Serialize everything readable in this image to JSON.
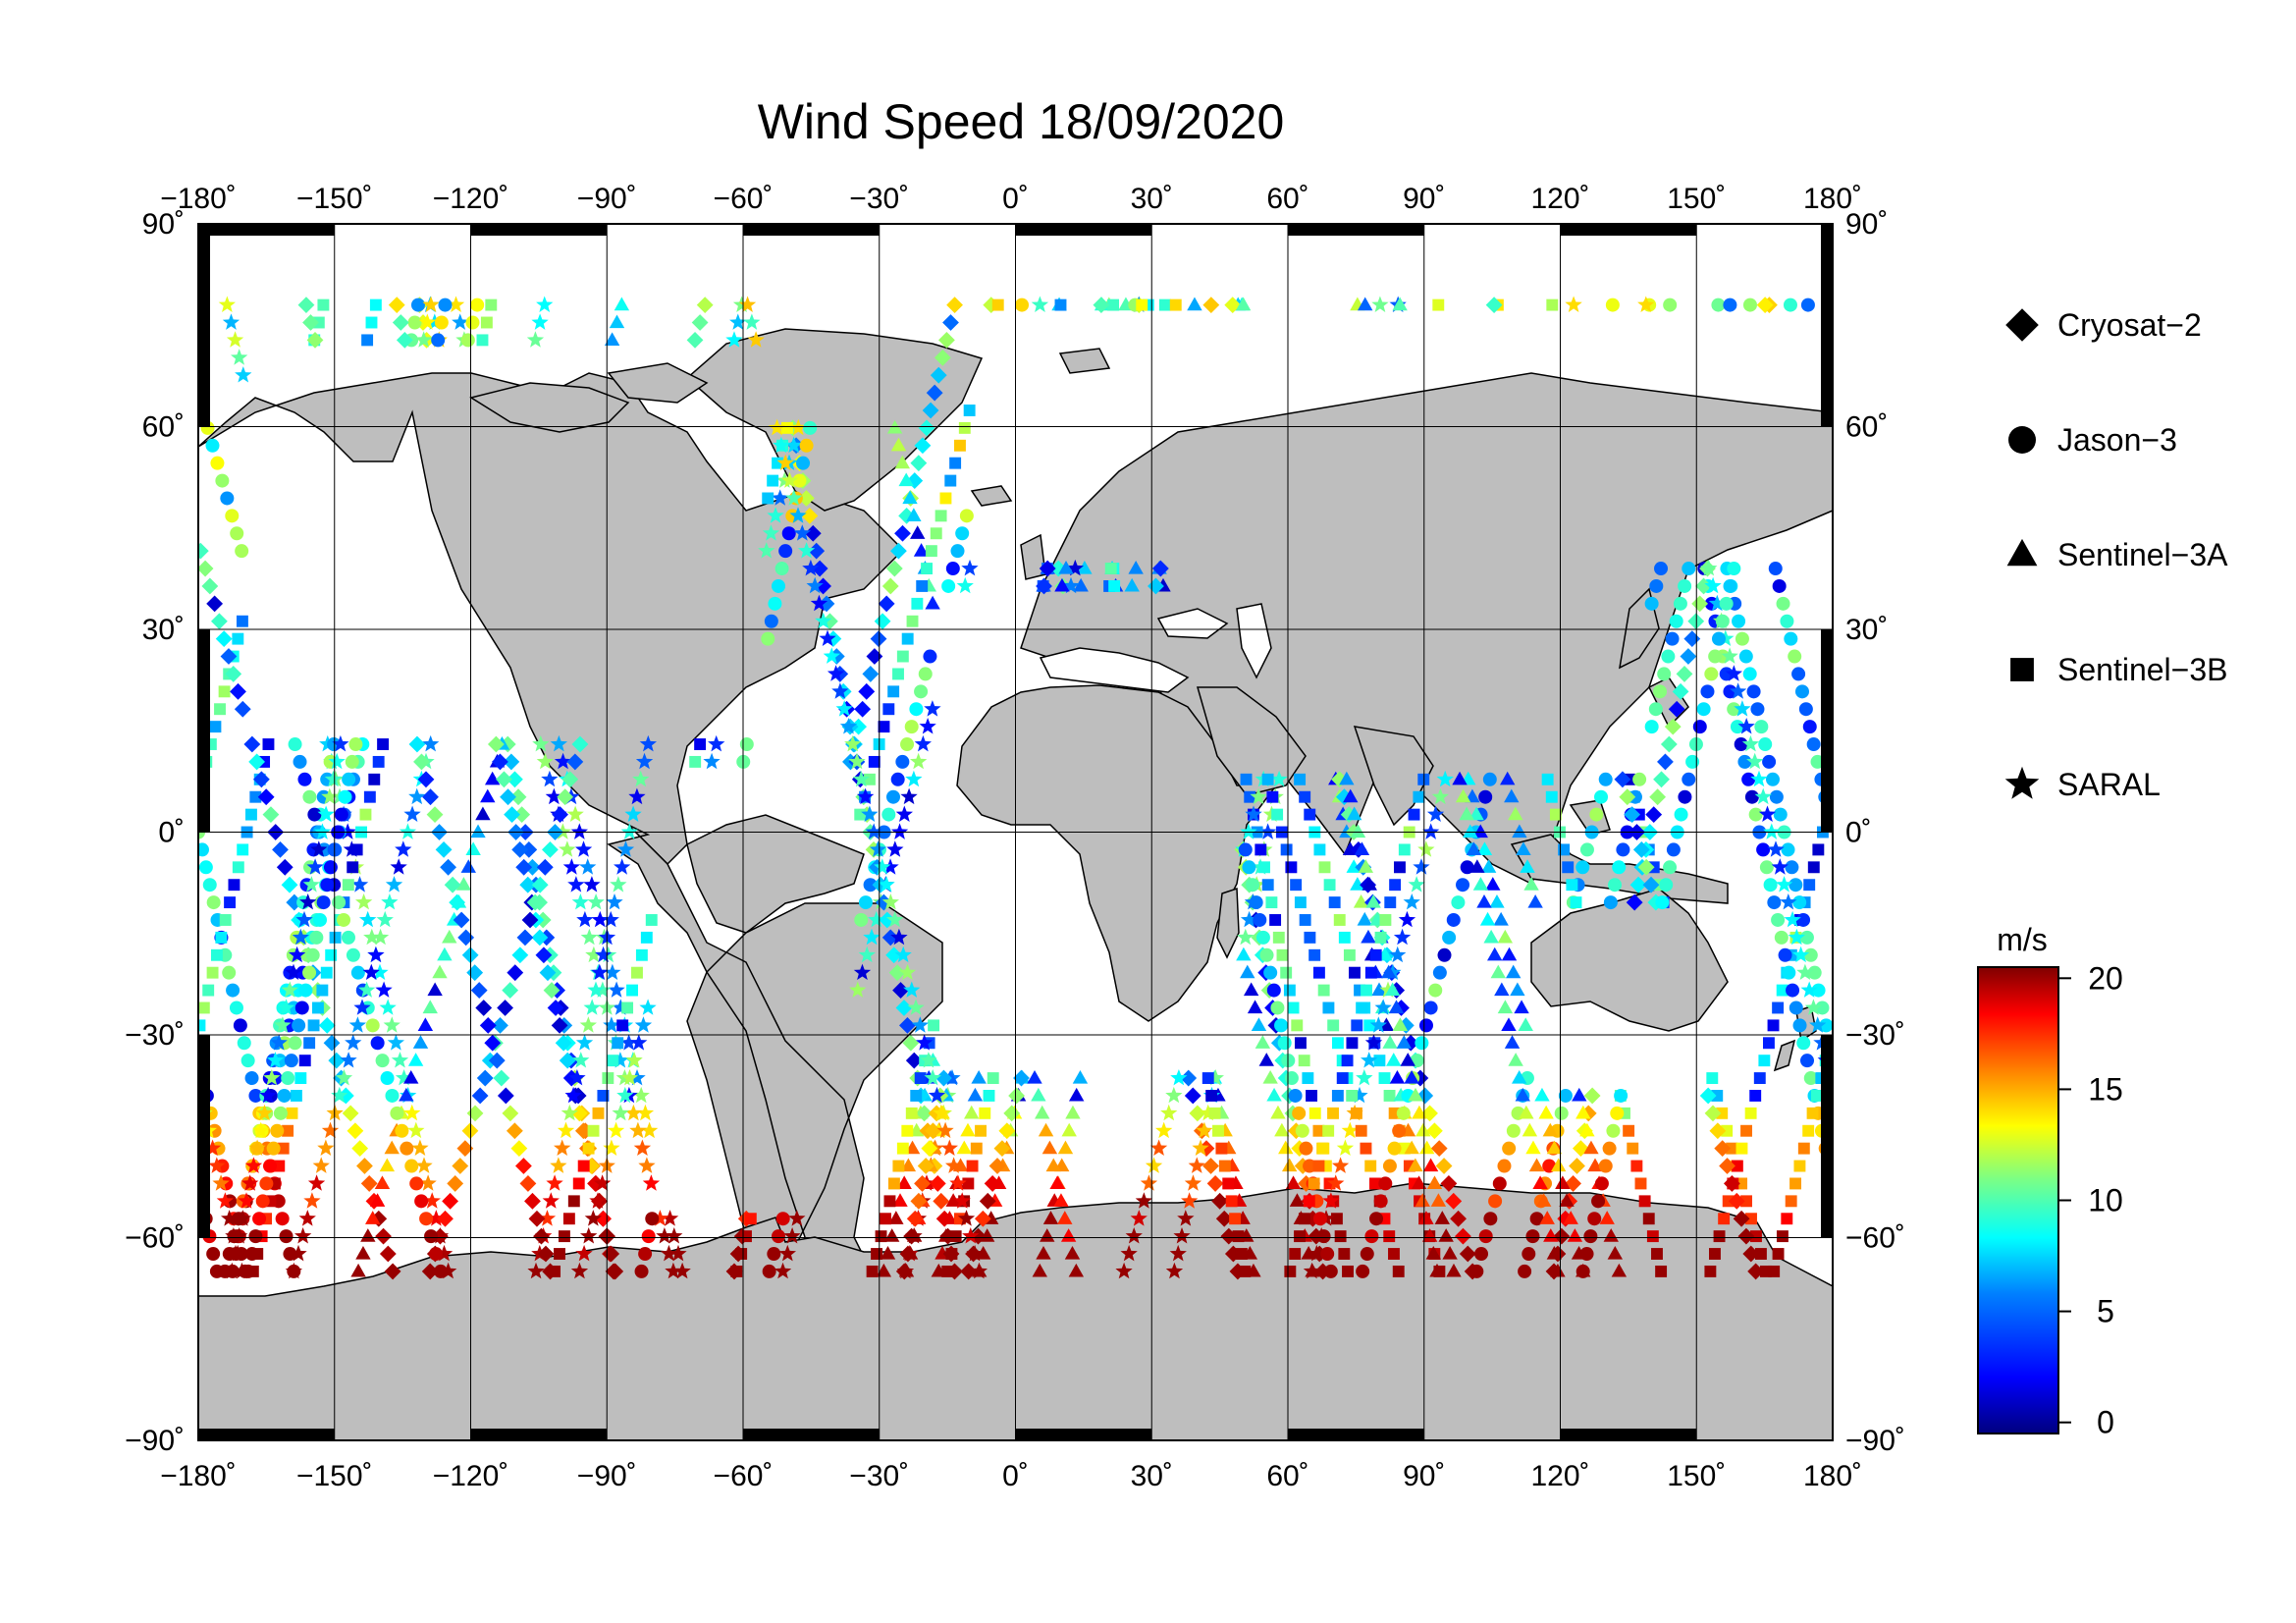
{
  "title": "Wind Speed 18/09/2020",
  "axes": {
    "lon_ticks": [
      "−180˚",
      "−150˚",
      "−120˚",
      "−90˚",
      "−60˚",
      "−30˚",
      "0˚",
      "30˚",
      "60˚",
      "90˚",
      "120˚",
      "150˚",
      "180˚"
    ],
    "lat_ticks": [
      "90˚",
      "60˚",
      "30˚",
      "0˚",
      "−30˚",
      "−60˚",
      "−90˚"
    ],
    "lon_values": [
      -180,
      -150,
      -120,
      -90,
      -60,
      -30,
      0,
      30,
      60,
      90,
      120,
      150,
      180
    ],
    "lat_values": [
      90,
      60,
      30,
      0,
      -30,
      -60,
      -90
    ]
  },
  "legend": {
    "items": [
      {
        "label": "Cryosat−2",
        "symbol": "diamond"
      },
      {
        "label": "Jason−3",
        "symbol": "circle"
      },
      {
        "label": "Sentinel−3A",
        "symbol": "triangle"
      },
      {
        "label": "Sentinel−3B",
        "symbol": "square"
      },
      {
        "label": "SARAL",
        "symbol": "star"
      }
    ]
  },
  "colorbar": {
    "unit": "m/s",
    "ticks": [
      "0",
      "5",
      "10",
      "15",
      "20"
    ],
    "tick_values": [
      0,
      5,
      10,
      15,
      20
    ],
    "range": [
      -0.5,
      20.5
    ],
    "colors": [
      "#00007f",
      "#0000ff",
      "#0080ff",
      "#00ffff",
      "#80ff80",
      "#ffff00",
      "#ff8000",
      "#ff0000",
      "#7f0000"
    ]
  },
  "colors": {
    "land": "#bebebe",
    "coast": "#000000",
    "ocean": "#ffffff"
  }
}
